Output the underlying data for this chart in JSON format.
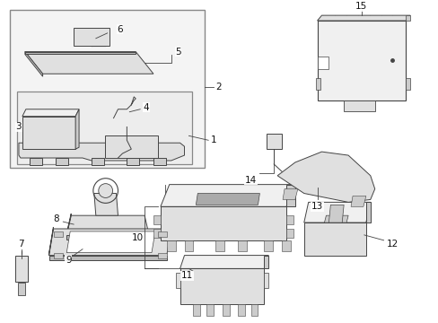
{
  "bg_color": "#ffffff",
  "line_color": "#444444",
  "fill_light": "#f0f0f0",
  "fill_mid": "#e0e0e0",
  "fill_dark": "#cccccc",
  "lw": 0.7,
  "fs": 7.5
}
